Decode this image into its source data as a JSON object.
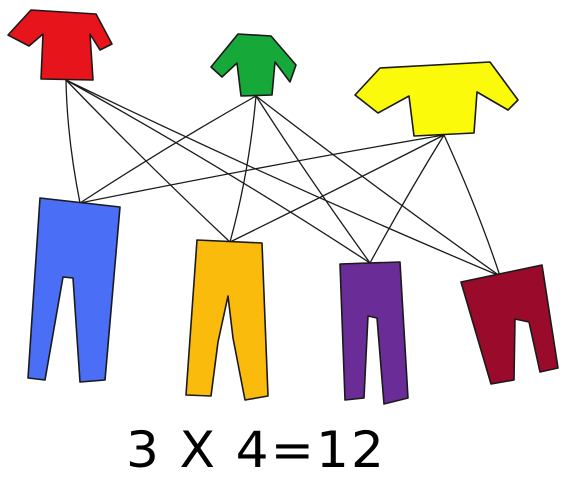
{
  "figure": {
    "equation": "3 X 4=12"
  },
  "shirts": [
    {
      "id": "red",
      "color": "#e8141b"
    },
    {
      "id": "green",
      "color": "#17a83a"
    },
    {
      "id": "yellow",
      "color": "#fafa0a"
    }
  ],
  "pants": [
    {
      "id": "blue",
      "color": "#4a6ef5"
    },
    {
      "id": "orange",
      "color": "#fbbb0c"
    },
    {
      "id": "purple",
      "color": "#6a2c96"
    },
    {
      "id": "maroon",
      "color": "#9a0a2a"
    }
  ],
  "connections": [
    [
      "red",
      "blue"
    ],
    [
      "red",
      "orange"
    ],
    [
      "red",
      "purple"
    ],
    [
      "red",
      "maroon"
    ],
    [
      "green",
      "blue"
    ],
    [
      "green",
      "orange"
    ],
    [
      "green",
      "purple"
    ],
    [
      "green",
      "maroon"
    ],
    [
      "yellow",
      "blue"
    ],
    [
      "yellow",
      "orange"
    ],
    [
      "yellow",
      "purple"
    ],
    [
      "yellow",
      "maroon"
    ]
  ]
}
